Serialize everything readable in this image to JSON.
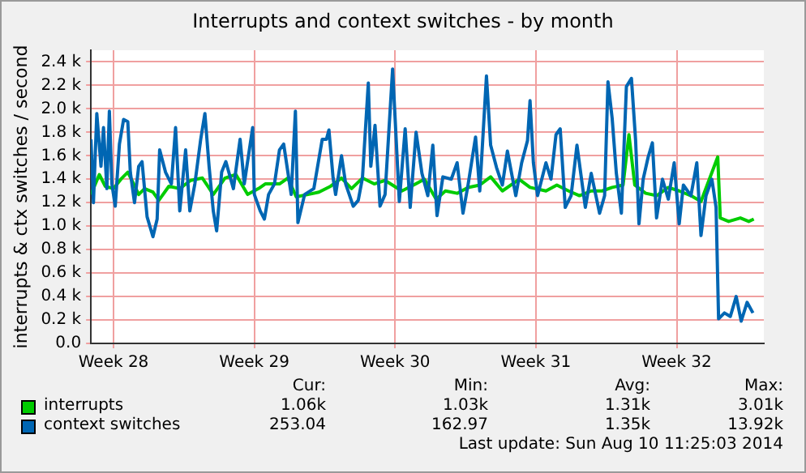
{
  "chart_data": {
    "type": "line",
    "title": "Interrupts and context switches - by month",
    "ylabel": "interrupts & ctx switches / second",
    "xlim": [
      "2014-07-08T09:00",
      "2014-08-10T20:00"
    ],
    "xticks": [
      {
        "value": "2014-07-09T12:00",
        "label": "Week 28"
      },
      {
        "value": "2014-07-16T12:00",
        "label": "Week 29"
      },
      {
        "value": "2014-07-23T12:00",
        "label": "Week 30"
      },
      {
        "value": "2014-07-30T12:00",
        "label": "Week 31"
      },
      {
        "value": "2014-08-06T12:00",
        "label": "Week 32"
      }
    ],
    "ylim": [
      0,
      2500
    ],
    "yticks": [
      {
        "value": 0,
        "label": "0.0"
      },
      {
        "value": 200,
        "label": "0.2 k"
      },
      {
        "value": 400,
        "label": "0.4 k"
      },
      {
        "value": 600,
        "label": "0.6 k"
      },
      {
        "value": 800,
        "label": "0.8 k"
      },
      {
        "value": 1000,
        "label": "1.0 k"
      },
      {
        "value": 1200,
        "label": "1.2 k"
      },
      {
        "value": 1400,
        "label": "1.4 k"
      },
      {
        "value": 1600,
        "label": "1.6 k"
      },
      {
        "value": 1800,
        "label": "1.8 k"
      },
      {
        "value": 2000,
        "label": "2.0 k"
      },
      {
        "value": 2200,
        "label": "2.2 k"
      },
      {
        "value": 2400,
        "label": "2.4 k"
      }
    ],
    "grid": true,
    "legend": "bottom",
    "marker": "none",
    "line_style": "solid",
    "annotations": [
      "Cur:",
      "Min:",
      "Avg:",
      "Max:",
      "1.06k",
      "1.03k",
      "1.31k",
      "3.01k",
      "253.04",
      "162.97",
      "1.35k",
      "13.92k",
      "Last update: Sun Aug 10 11:25:03 2014"
    ],
    "series": [
      {
        "name": "interrupts",
        "color": "#00cc00",
        "x": [
          "2014-07-08T09:00",
          "2014-07-08T19:00",
          "2014-07-09T02:00",
          "2014-07-09T12:00",
          "2014-07-09T22:00",
          "2014-07-10T05:00",
          "2014-07-10T12:00",
          "2014-07-10T18:00",
          "2014-07-11T01:00",
          "2014-07-11T11:00",
          "2014-07-11T18:00",
          "2014-07-12T06:00",
          "2014-07-12T19:00",
          "2014-07-13T08:00",
          "2014-07-13T22:00",
          "2014-07-14T11:00",
          "2014-07-15T01:00",
          "2014-07-15T14:00",
          "2014-07-16T04:00",
          "2014-07-16T17:00",
          "2014-07-17T01:00",
          "2014-07-17T18:00",
          "2014-07-18T04:00",
          "2014-07-18T14:00",
          "2014-07-19T04:00",
          "2014-07-19T17:00",
          "2014-07-20T07:00",
          "2014-07-20T20:00",
          "2014-07-21T08:00",
          "2014-07-21T21:00",
          "2014-07-22T11:00",
          "2014-07-23T00:00",
          "2014-07-23T20:00",
          "2014-07-24T10:00",
          "2014-07-24T23:00",
          "2014-07-25T13:00",
          "2014-07-26T00:00",
          "2014-07-26T14:00",
          "2014-07-27T03:00",
          "2014-07-27T17:00",
          "2014-07-28T06:00",
          "2014-07-28T20:00",
          "2014-07-29T16:00",
          "2014-07-30T05:00",
          "2014-07-31T00:00",
          "2014-07-31T13:00",
          "2014-08-01T03:00",
          "2014-08-01T16:00",
          "2014-08-02T06:00",
          "2014-08-02T19:00",
          "2014-08-03T07:00",
          "2014-08-03T20:00",
          "2014-08-04T03:00",
          "2014-08-04T10:00",
          "2014-08-04T23:00",
          "2014-08-05T12:00",
          "2014-08-06T02:00",
          "2014-08-06T15:00",
          "2014-08-07T05:00",
          "2014-08-07T17:00",
          "2014-08-08T03:00",
          "2014-08-08T13:00",
          "2014-08-08T16:00",
          "2014-08-09T02:00",
          "2014-08-09T16:00",
          "2014-08-10T02:00",
          "2014-08-10T08:00"
        ],
        "values": [
          1270,
          1440,
          1340,
          1320,
          1410,
          1460,
          1360,
          1270,
          1320,
          1290,
          1220,
          1340,
          1320,
          1390,
          1410,
          1270,
          1410,
          1440,
          1270,
          1320,
          1360,
          1360,
          1410,
          1250,
          1270,
          1290,
          1340,
          1410,
          1320,
          1410,
          1360,
          1390,
          1300,
          1350,
          1400,
          1230,
          1300,
          1280,
          1330,
          1350,
          1420,
          1300,
          1400,
          1330,
          1300,
          1350,
          1300,
          1260,
          1300,
          1300,
          1330,
          1350,
          1780,
          1350,
          1280,
          1260,
          1330,
          1300,
          1260,
          1210,
          1400,
          1590,
          1070,
          1040,
          1070,
          1040,
          1060
        ]
      },
      {
        "name": "context switches",
        "color": "#0066b3",
        "x": [
          "2014-07-08T09:00",
          "2014-07-08T12:00",
          "2014-07-08T16:00",
          "2014-07-08T21:00",
          "2014-07-09T00:00",
          "2014-07-09T04:00",
          "2014-07-09T07:00",
          "2014-07-09T10:00",
          "2014-07-09T14:00",
          "2014-07-09T19:00",
          "2014-07-10T00:00",
          "2014-07-10T05:00",
          "2014-07-10T08:00",
          "2014-07-10T13:00",
          "2014-07-10T18:00",
          "2014-07-10T22:00",
          "2014-07-11T04:00",
          "2014-07-11T11:00",
          "2014-07-11T16:00",
          "2014-07-11T19:00",
          "2014-07-12T02:00",
          "2014-07-12T09:00",
          "2014-07-12T14:00",
          "2014-07-12T19:00",
          "2014-07-13T02:00",
          "2014-07-13T07:00",
          "2014-07-13T13:00",
          "2014-07-13T20:00",
          "2014-07-14T01:00",
          "2014-07-14T06:00",
          "2014-07-14T11:00",
          "2014-07-14T15:00",
          "2014-07-14T21:00",
          "2014-07-15T02:00",
          "2014-07-15T11:00",
          "2014-07-15T19:00",
          "2014-07-16T00:00",
          "2014-07-16T10:00",
          "2014-07-16T12:00",
          "2014-07-16T19:00",
          "2014-07-17T00:00",
          "2014-07-17T05:00",
          "2014-07-17T12:00",
          "2014-07-17T18:00",
          "2014-07-17T23:00",
          "2014-07-18T08:00",
          "2014-07-18T13:00",
          "2014-07-18T16:00",
          "2014-07-19T00:00",
          "2014-07-19T11:00",
          "2014-07-19T21:00",
          "2014-07-20T02:00",
          "2014-07-20T05:00",
          "2014-07-20T10:00",
          "2014-07-20T13:00",
          "2014-07-20T20:00",
          "2014-07-21T01:00",
          "2014-07-21T10:00",
          "2014-07-21T16:00",
          "2014-07-21T21:00",
          "2014-07-22T04:00",
          "2014-07-22T07:00",
          "2014-07-22T12:00",
          "2014-07-22T18:00",
          "2014-07-23T00:00",
          "2014-07-23T09:00",
          "2014-07-23T17:00",
          "2014-07-24T00:00",
          "2014-07-24T06:00",
          "2014-07-24T13:00",
          "2014-07-24T20:00",
          "2014-07-25T03:00",
          "2014-07-25T09:00",
          "2014-07-25T14:00",
          "2014-07-25T21:00",
          "2014-07-26T07:00",
          "2014-07-26T14:00",
          "2014-07-26T21:00",
          "2014-07-27T03:00",
          "2014-07-27T12:00",
          "2014-07-27T17:00",
          "2014-07-28T01:00",
          "2014-07-28T06:00",
          "2014-07-28T13:00",
          "2014-07-28T20:00",
          "2014-07-29T02:00",
          "2014-07-29T12:00",
          "2014-07-29T19:00",
          "2014-07-30T02:00",
          "2014-07-30T05:00",
          "2014-07-30T09:00",
          "2014-07-30T14:00",
          "2014-07-31T00:00",
          "2014-07-31T06:00",
          "2014-07-31T12:00",
          "2014-07-31T17:00",
          "2014-07-31T23:00",
          "2014-08-01T06:00",
          "2014-08-01T13:00",
          "2014-08-01T23:00",
          "2014-08-02T06:00",
          "2014-08-02T16:00",
          "2014-08-02T22:00",
          "2014-08-03T02:00",
          "2014-08-03T07:00",
          "2014-08-03T12:00",
          "2014-08-03T18:00",
          "2014-08-04T00:00",
          "2014-08-04T06:00",
          "2014-08-04T11:00",
          "2014-08-04T15:00",
          "2014-08-04T20:00",
          "2014-08-05T02:00",
          "2014-08-05T07:00",
          "2014-08-05T12:00",
          "2014-08-05T19:00",
          "2014-08-06T02:00",
          "2014-08-06T09:00",
          "2014-08-06T15:00",
          "2014-08-06T20:00",
          "2014-08-07T05:00",
          "2014-08-07T12:00",
          "2014-08-07T17:00",
          "2014-08-07T23:00",
          "2014-08-08T06:00",
          "2014-08-08T11:00",
          "2014-08-08T14:00",
          "2014-08-08T21:00",
          "2014-08-09T04:00",
          "2014-08-09T11:00",
          "2014-08-09T17:00",
          "2014-08-10T00:00",
          "2014-08-10T07:00"
        ],
        "values": [
          1740,
          1200,
          1960,
          1510,
          1840,
          1320,
          1980,
          1360,
          1170,
          1700,
          1910,
          1890,
          1460,
          1200,
          1510,
          1550,
          1080,
          910,
          1060,
          1650,
          1460,
          1360,
          1840,
          1130,
          1650,
          1130,
          1360,
          1740,
          1960,
          1510,
          1130,
          960,
          1460,
          1550,
          1320,
          1740,
          1360,
          1840,
          1270,
          1130,
          1060,
          1270,
          1360,
          1650,
          1700,
          1270,
          1980,
          1030,
          1270,
          1320,
          1740,
          1740,
          1820,
          1410,
          1270,
          1600,
          1360,
          1170,
          1220,
          1410,
          2220,
          1510,
          1860,
          1170,
          1270,
          2340,
          1210,
          1830,
          1160,
          1800,
          1450,
          1260,
          1690,
          1090,
          1420,
          1400,
          1540,
          1110,
          1350,
          1760,
          1300,
          2280,
          1690,
          1500,
          1350,
          1640,
          1260,
          1540,
          1730,
          2070,
          1540,
          1260,
          1540,
          1400,
          1780,
          1830,
          1160,
          1260,
          1690,
          1160,
          1450,
          1110,
          1260,
          2230,
          1920,
          1450,
          1110,
          2190,
          2260,
          1730,
          1020,
          1400,
          1590,
          1710,
          1070,
          1400,
          1230,
          1540,
          1020,
          1350,
          1260,
          1540,
          920,
          1260,
          1400,
          1160,
          210,
          260,
          230,
          400,
          190,
          350,
          260
        ]
      }
    ]
  }
}
